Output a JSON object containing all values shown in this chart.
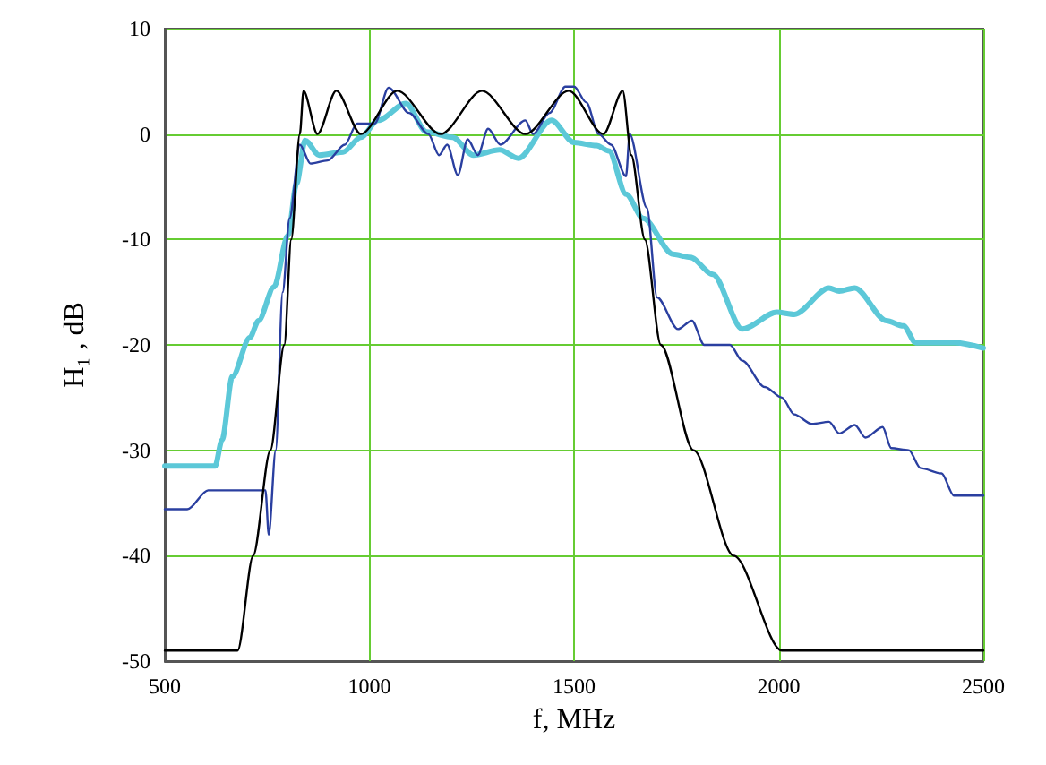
{
  "chart_data": {
    "type": "line",
    "xlabel": "f, MHz",
    "ylabel": "H₁ , dB",
    "xlim": [
      500,
      2500
    ],
    "ylim": [
      -50,
      10
    ],
    "xticks": [
      500,
      1000,
      1500,
      2000,
      2500
    ],
    "yticks": [
      -50,
      -40,
      -30,
      -20,
      -10,
      0,
      10
    ],
    "grid": true,
    "marker": "none",
    "line_style": "solid",
    "series": [
      {
        "color": "#000000",
        "x": [
          500,
          678,
          716,
          758,
          792,
          809,
          830,
          839,
          873,
          919,
          979,
          1068,
          1174,
          1275,
          1381,
          1487,
          1572,
          1619,
          1640,
          1673,
          1712,
          1792,
          1890,
          2008,
          2500
        ],
        "values": [
          -49,
          -49,
          -40,
          -30,
          -20,
          -10,
          0,
          4.1,
          0,
          4.1,
          0,
          4.1,
          0,
          4.1,
          0,
          4.1,
          0,
          4.1,
          -2,
          -10,
          -20,
          -30,
          -40,
          -49,
          -49
        ]
      },
      {
        "color": "#2a3fa0",
        "x": [
          500,
          555,
          606,
          746,
          754,
          771,
          788,
          805,
          830,
          856,
          898,
          940,
          970,
          1013,
          1047,
          1097,
          1144,
          1170,
          1190,
          1216,
          1240,
          1265,
          1290,
          1320,
          1381,
          1400,
          1440,
          1479,
          1500,
          1530,
          1560,
          1590,
          1627,
          1636,
          1678,
          1703,
          1754,
          1788,
          1818,
          1881,
          1911,
          1966,
          2008,
          2038,
          2081,
          2123,
          2148,
          2186,
          2212,
          2254,
          2275,
          2318,
          2347,
          2398,
          2428,
          2500
        ],
        "values": [
          -35.6,
          -35.6,
          -33.8,
          -33.8,
          -38,
          -30,
          -15,
          -8,
          -1,
          -2.8,
          -2.5,
          -1,
          1,
          1,
          4.4,
          2,
          0,
          -2,
          -1,
          -3.9,
          -0.5,
          -2,
          0.5,
          -1,
          1.3,
          0,
          2,
          4.5,
          4.5,
          3,
          0,
          -1,
          -4,
          0,
          -7,
          -15.5,
          -18.5,
          -17.7,
          -20,
          -20,
          -21.5,
          -24,
          -25,
          -26.6,
          -27.5,
          -27.3,
          -28.4,
          -27.6,
          -28.8,
          -27.8,
          -29.8,
          -30,
          -31.7,
          -32.2,
          -34.3,
          -34.3
        ]
      },
      {
        "color": "#5cc8d8",
        "x": [
          500,
          623,
          640,
          665,
          708,
          729,
          767,
          801,
          822,
          843,
          877,
          936,
          979,
          1021,
          1089,
          1140,
          1203,
          1254,
          1318,
          1364,
          1445,
          1500,
          1555,
          1585,
          1627,
          1669,
          1742,
          1784,
          1839,
          1911,
          1996,
          2038,
          2123,
          2148,
          2186,
          2263,
          2305,
          2335,
          2432,
          2500
        ],
        "values": [
          -31.5,
          -31.5,
          -29,
          -23,
          -19.3,
          -17.7,
          -14.5,
          -9.6,
          -4.7,
          -0.6,
          -2,
          -1.7,
          -0.3,
          1.3,
          2.9,
          0.2,
          -0.3,
          -2,
          -1.5,
          -2.3,
          1.3,
          -0.8,
          -1.1,
          -1.6,
          -5.7,
          -8,
          -11.4,
          -11.7,
          -13.3,
          -18.5,
          -16.9,
          -17.1,
          -14.6,
          -14.9,
          -14.6,
          -17.7,
          -18.2,
          -19.8,
          -19.8,
          -20.3
        ]
      }
    ]
  }
}
